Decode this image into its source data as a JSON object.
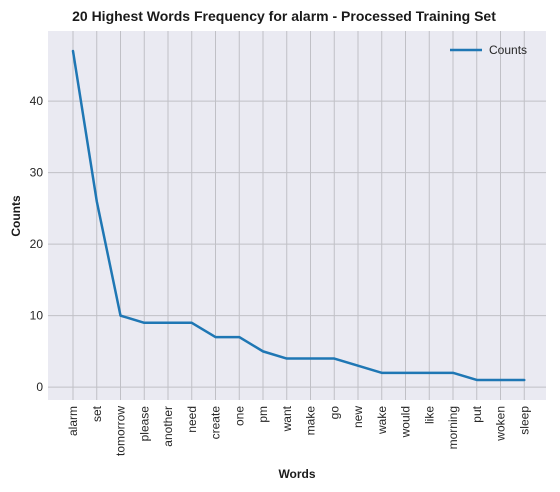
{
  "chart_data": {
    "type": "line",
    "title": "20 Highest Words Frequency for alarm - Processed Training Set",
    "xlabel": "Words",
    "ylabel": "Counts",
    "categories": [
      "alarm",
      "set",
      "tomorrow",
      "please",
      "another",
      "need",
      "create",
      "one",
      "pm",
      "want",
      "make",
      "go",
      "new",
      "wake",
      "would",
      "like",
      "morning",
      "put",
      "woken",
      "sleep"
    ],
    "series": [
      {
        "name": "Counts",
        "values": [
          47,
          26,
          10,
          9,
          9,
          9,
          7,
          7,
          5,
          4,
          4,
          4,
          3,
          2,
          2,
          2,
          2,
          1,
          1,
          1
        ],
        "color": "#1f77b4"
      }
    ],
    "yticks": [
      0,
      10,
      20,
      30,
      40
    ],
    "ylim": [
      -1.8,
      49.8
    ],
    "grid": true,
    "legend": "top-right"
  }
}
